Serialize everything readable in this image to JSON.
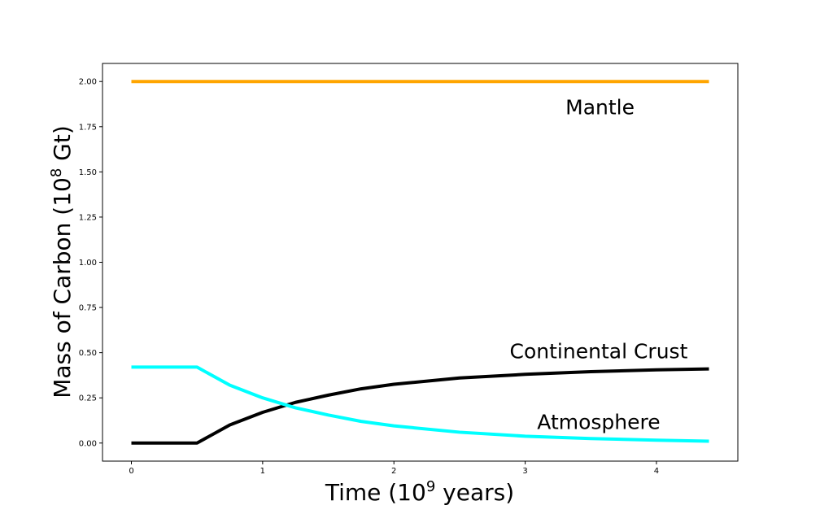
{
  "chart_data": {
    "type": "line",
    "xlabel": "Time (10",
    "xlabel_sup": "9",
    "xlabel_tail": " years)",
    "ylabel": "Mass of Carbon (10",
    "ylabel_sup": "8",
    "ylabel_tail": " Gt)",
    "xlim": [
      -0.22,
      4.62
    ],
    "ylim": [
      -0.1,
      2.1
    ],
    "xticks": [
      0,
      1,
      2,
      3,
      4
    ],
    "xtick_labels": [
      "0",
      "1",
      "2",
      "3",
      "4"
    ],
    "yticks": [
      0.0,
      0.25,
      0.5,
      0.75,
      1.0,
      1.25,
      1.5,
      1.75,
      2.0
    ],
    "ytick_labels": [
      "0.00",
      "0.25",
      "0.50",
      "0.75",
      "1.00",
      "1.25",
      "1.50",
      "1.75",
      "2.00"
    ],
    "grid": false,
    "series": [
      {
        "name": "Mantle",
        "color": "#ffa500",
        "x": [
          0,
          4.4
        ],
        "y": [
          2.0,
          2.0
        ]
      },
      {
        "name": "Continental Crust",
        "color": "#000000",
        "x": [
          0,
          0.5,
          0.75,
          1.0,
          1.25,
          1.5,
          1.75,
          2.0,
          2.5,
          3.0,
          3.5,
          4.0,
          4.4
        ],
        "y": [
          0.0,
          0.0,
          0.1,
          0.17,
          0.225,
          0.265,
          0.3,
          0.325,
          0.36,
          0.38,
          0.395,
          0.405,
          0.41
        ]
      },
      {
        "name": "Atmosphere",
        "color": "#00ffff",
        "x": [
          0,
          0.5,
          0.75,
          1.0,
          1.25,
          1.5,
          1.75,
          2.0,
          2.5,
          3.0,
          3.5,
          4.0,
          4.4
        ],
        "y": [
          0.42,
          0.42,
          0.32,
          0.25,
          0.195,
          0.155,
          0.12,
          0.095,
          0.06,
          0.038,
          0.025,
          0.016,
          0.01
        ]
      }
    ],
    "annotations": [
      {
        "text": "Mantle",
        "x": 3.57,
        "y": 1.85
      },
      {
        "text": "Continental Crust",
        "x": 3.56,
        "y": 0.5
      },
      {
        "text": "Atmosphere",
        "x": 3.56,
        "y": 0.11
      }
    ]
  }
}
